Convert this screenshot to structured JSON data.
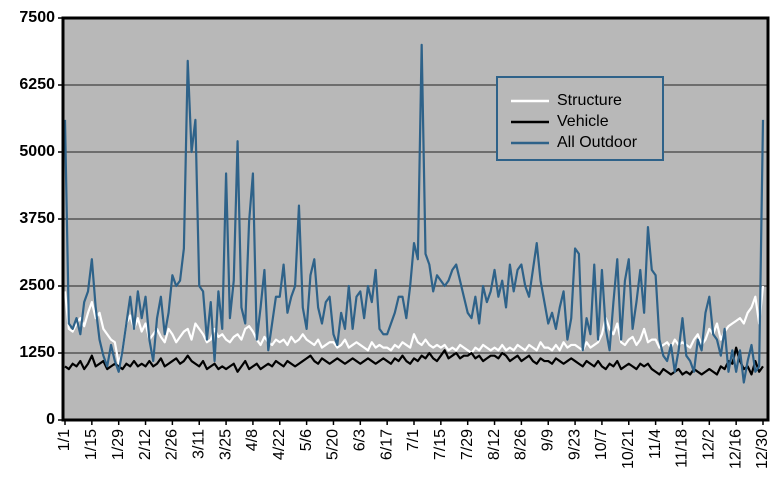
{
  "chart_data": {
    "type": "line",
    "categories": [
      "1/1",
      null,
      null,
      null,
      null,
      null,
      null,
      "1/15",
      null,
      null,
      null,
      null,
      null,
      null,
      "1/29",
      null,
      null,
      null,
      null,
      null,
      null,
      "2/12",
      null,
      null,
      null,
      null,
      null,
      null,
      "2/26",
      null,
      null,
      null,
      null,
      null,
      null,
      "3/11",
      null,
      null,
      null,
      null,
      null,
      null,
      "3/25",
      null,
      null,
      null,
      null,
      null,
      null,
      "4/8",
      null,
      null,
      null,
      null,
      null,
      null,
      "4/22",
      null,
      null,
      null,
      null,
      null,
      null,
      "5/6",
      null,
      null,
      null,
      null,
      null,
      null,
      "5/20",
      null,
      null,
      null,
      null,
      null,
      null,
      "6/3",
      null,
      null,
      null,
      null,
      null,
      null,
      "6/17",
      null,
      null,
      null,
      null,
      null,
      null,
      "7/1",
      null,
      null,
      null,
      null,
      null,
      null,
      "7/15",
      null,
      null,
      null,
      null,
      null,
      null,
      "7/29",
      null,
      null,
      null,
      null,
      null,
      null,
      "8/12",
      null,
      null,
      null,
      null,
      null,
      null,
      "8/26",
      null,
      null,
      null,
      null,
      null,
      null,
      "9/9",
      null,
      null,
      null,
      null,
      null,
      null,
      "9/23",
      null,
      null,
      null,
      null,
      null,
      null,
      "10/7",
      null,
      null,
      null,
      null,
      null,
      null,
      "10/21",
      null,
      null,
      null,
      null,
      null,
      null,
      "11/4",
      null,
      null,
      null,
      null,
      null,
      null,
      "11/18",
      null,
      null,
      null,
      null,
      null,
      null,
      "12/2",
      null,
      null,
      null,
      null,
      null,
      null,
      "12/16",
      null,
      null,
      null,
      null,
      null,
      null,
      "12/30"
    ],
    "series": [
      {
        "name": "Structure",
        "color": "#ffffff",
        "values": [
          2400,
          1700,
          1650,
          1800,
          1900,
          1750,
          2000,
          2200,
          1900,
          2000,
          1700,
          1600,
          1500,
          1450,
          1050,
          1300,
          1800,
          1950,
          1700,
          1900,
          1650,
          1800,
          1500,
          1600,
          1700,
          1550,
          1450,
          1700,
          1600,
          1450,
          1550,
          1650,
          1700,
          1500,
          1800,
          1700,
          1600,
          1450,
          1500,
          1700,
          1550,
          1600,
          1500,
          1450,
          1550,
          1600,
          1500,
          1700,
          1750,
          1650,
          1500,
          1400,
          1550,
          1450,
          1400,
          1500,
          1450,
          1500,
          1400,
          1550,
          1450,
          1500,
          1600,
          1500,
          1450,
          1400,
          1500,
          1350,
          1400,
          1450,
          1450,
          1350,
          1400,
          1500,
          1350,
          1400,
          1450,
          1400,
          1350,
          1300,
          1450,
          1350,
          1400,
          1350,
          1350,
          1300,
          1400,
          1350,
          1450,
          1400,
          1350,
          1600,
          1450,
          1400,
          1500,
          1400,
          1350,
          1400,
          1350,
          1400,
          1300,
          1350,
          1300,
          1400,
          1350,
          1300,
          1250,
          1350,
          1300,
          1400,
          1350,
          1300,
          1350,
          1300,
          1400,
          1300,
          1350,
          1300,
          1400,
          1350,
          1300,
          1400,
          1350,
          1300,
          1450,
          1350,
          1350,
          1300,
          1400,
          1300,
          1450,
          1350,
          1400,
          1400,
          1350,
          1300,
          1450,
          1350,
          1400,
          1450,
          1600,
          1900,
          1700,
          1600,
          1800,
          1450,
          1400,
          1500,
          1550,
          1400,
          1500,
          1700,
          1450,
          1500,
          1500,
          1350,
          1400,
          1450,
          1350,
          1500,
          1400,
          1450,
          1400,
          1350,
          1500,
          1600,
          1400,
          1500,
          1700,
          1600,
          1800,
          1500,
          1650,
          1750,
          1800,
          1850,
          1900,
          1800,
          2000,
          2100,
          2300,
          1800,
          2500
        ]
      },
      {
        "name": "Vehicle",
        "color": "#000000",
        "values": [
          1000,
          950,
          1050,
          1000,
          1100,
          950,
          1050,
          1200,
          1000,
          1050,
          1100,
          950,
          1000,
          1050,
          1000,
          950,
          1050,
          1000,
          1100,
          1000,
          1050,
          1000,
          1100,
          1000,
          1050,
          1150,
          1000,
          1050,
          1100,
          1150,
          1050,
          1100,
          1200,
          1100,
          1050,
          1000,
          1100,
          950,
          1000,
          1050,
          950,
          1000,
          950,
          1000,
          1050,
          900,
          1000,
          1100,
          950,
          1000,
          1050,
          950,
          1000,
          1050,
          1000,
          1100,
          1050,
          1000,
          1100,
          1050,
          1000,
          1050,
          1100,
          1150,
          1200,
          1100,
          1050,
          1150,
          1100,
          1050,
          1100,
          1150,
          1100,
          1050,
          1100,
          1150,
          1100,
          1050,
          1100,
          1150,
          1100,
          1050,
          1100,
          1150,
          1100,
          1050,
          1150,
          1100,
          1200,
          1100,
          1050,
          1150,
          1100,
          1200,
          1150,
          1250,
          1150,
          1100,
          1200,
          1300,
          1150,
          1200,
          1250,
          1150,
          1200,
          1200,
          1250,
          1150,
          1200,
          1100,
          1150,
          1200,
          1200,
          1150,
          1250,
          1200,
          1100,
          1150,
          1200,
          1100,
          1150,
          1200,
          1100,
          1050,
          1150,
          1100,
          1100,
          1050,
          1150,
          1100,
          1050,
          1100,
          1150,
          1100,
          1050,
          1000,
          1100,
          1050,
          1000,
          1100,
          1000,
          950,
          1050,
          1000,
          1100,
          950,
          1000,
          1050,
          1000,
          950,
          1050,
          1000,
          1050,
          950,
          900,
          850,
          950,
          900,
          850,
          900,
          950,
          850,
          900,
          850,
          950,
          900,
          850,
          900,
          950,
          900,
          850,
          1000,
          950,
          1100,
          1050,
          1350,
          1100,
          950,
          1000,
          850,
          1100,
          900,
          1000
        ]
      },
      {
        "name": "All Outdoor",
        "color": "#2e6289",
        "values": [
          5600,
          1800,
          1700,
          1900,
          1600,
          2200,
          2400,
          3000,
          2100,
          1500,
          1200,
          1000,
          1400,
          1100,
          900,
          1300,
          1800,
          2300,
          1700,
          2400,
          1900,
          2300,
          1500,
          1100,
          1900,
          2300,
          1600,
          2000,
          2700,
          2500,
          2600,
          3200,
          6700,
          5000,
          5600,
          2500,
          2400,
          1500,
          2200,
          1100,
          2400,
          1700,
          4600,
          1900,
          2600,
          5200,
          2100,
          1800,
          3700,
          4600,
          1500,
          2100,
          2800,
          1300,
          1800,
          2300,
          2300,
          2900,
          2000,
          2300,
          2500,
          4000,
          2100,
          1700,
          2700,
          3000,
          2100,
          1800,
          2200,
          2300,
          1600,
          1400,
          2000,
          1700,
          2500,
          1700,
          2300,
          2400,
          1900,
          2500,
          2200,
          2800,
          1700,
          1600,
          1600,
          1800,
          2000,
          2300,
          2300,
          1900,
          2500,
          3300,
          3000,
          7000,
          3100,
          2900,
          2400,
          2700,
          2600,
          2500,
          2600,
          2800,
          2900,
          2600,
          2300,
          2000,
          1900,
          2300,
          1800,
          2500,
          2200,
          2400,
          2800,
          2300,
          2600,
          2100,
          2900,
          2400,
          2800,
          2900,
          2500,
          2300,
          2800,
          3300,
          2600,
          2200,
          1800,
          2000,
          1700,
          2100,
          2400,
          1500,
          1900,
          3200,
          3100,
          1300,
          1900,
          1600,
          2900,
          1500,
          2800,
          1700,
          1300,
          2200,
          3000,
          1500,
          2600,
          3000,
          1700,
          2200,
          2800,
          2000,
          3600,
          2800,
          2700,
          1500,
          1200,
          1100,
          1400,
          900,
          1300,
          1900,
          1200,
          1100,
          900,
          1500,
          1300,
          2000,
          2300,
          1600,
          1500,
          1200,
          1700,
          900,
          1300,
          900,
          1300,
          700,
          1100,
          1400,
          900,
          1000,
          5600
        ]
      }
    ],
    "ylim": [
      0,
      7500
    ],
    "yticks": [
      0,
      1250,
      2500,
      3750,
      5000,
      6250,
      7500
    ],
    "grid": true,
    "legend": "upper right"
  }
}
